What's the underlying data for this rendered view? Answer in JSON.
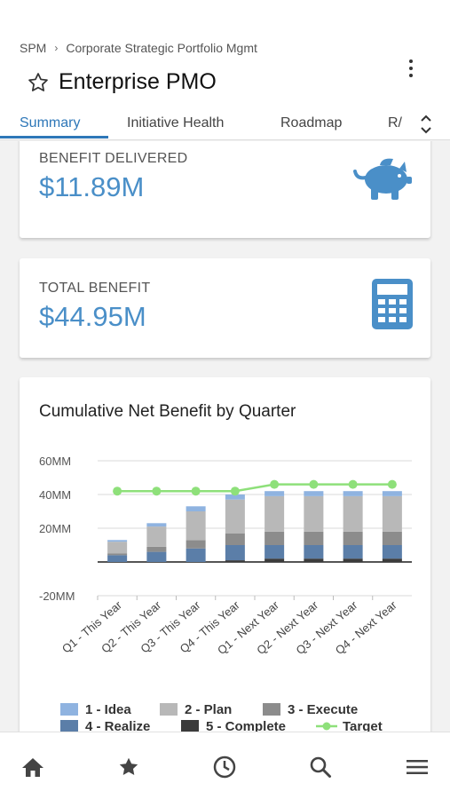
{
  "breadcrumb": {
    "root": "SPM",
    "separator": "›",
    "current": "Corporate Strategic Portfolio Mgmt"
  },
  "page": {
    "title": "Enterprise PMO"
  },
  "tabs": [
    {
      "label": "Summary",
      "active": true
    },
    {
      "label": "Initiative Health",
      "active": false
    },
    {
      "label": "Roadmap",
      "active": false
    },
    {
      "label": "R/",
      "active": false
    }
  ],
  "cards": {
    "benefit_delivered": {
      "label": "BENEFIT DELIVERED",
      "value": "$11.89M",
      "icon": "piggy-bank-icon"
    },
    "total_benefit": {
      "label": "TOTAL BENEFIT",
      "value": "$44.95M",
      "icon": "calculator-icon"
    }
  },
  "colors": {
    "accent": "#2e77b8",
    "icon": "#4a8fc8",
    "target": "#8ee07a"
  },
  "chart_data": {
    "type": "bar",
    "stacked": true,
    "title": "Cumulative Net Benefit by Quarter",
    "categories": [
      "Q1 - This Year",
      "Q2 - This Year",
      "Q3 - This Year",
      "Q4 - This Year",
      "Q1 - Next Year",
      "Q2 - Next Year",
      "Q3 - Next Year",
      "Q4 - Next Year"
    ],
    "y_tick_labels": [
      "60MM",
      "40MM",
      "20MM",
      "-20MM"
    ],
    "ylim": [
      -20,
      60
    ],
    "grid": true,
    "legend_position": "bottom",
    "series": [
      {
        "name": "5 - Complete",
        "color": "#3b3b3b",
        "values": [
          0,
          0,
          0,
          1,
          2,
          2,
          2,
          2
        ]
      },
      {
        "name": "4 - Realize",
        "color": "#5b7ea8",
        "values": [
          4,
          6,
          8,
          9,
          8,
          8,
          8,
          8
        ]
      },
      {
        "name": "3 - Execute",
        "color": "#8c8c8c",
        "values": [
          1,
          3,
          5,
          7,
          8,
          8,
          8,
          8
        ]
      },
      {
        "name": "2 - Plan",
        "color": "#b8b8b8",
        "values": [
          7,
          12,
          17,
          20,
          21,
          21,
          21,
          21
        ]
      },
      {
        "name": "1 - Idea",
        "color": "#8fb3e0",
        "values": [
          1,
          2,
          3,
          3,
          3,
          3,
          3,
          3
        ]
      }
    ],
    "target": {
      "name": "Target",
      "color": "#8ee07a",
      "values": [
        42,
        42,
        42,
        42,
        46,
        46,
        46,
        46
      ]
    },
    "legend": [
      {
        "name": "1 - Idea",
        "color": "#8fb3e0",
        "kind": "box"
      },
      {
        "name": "2 - Plan",
        "color": "#b8b8b8",
        "kind": "box"
      },
      {
        "name": "3 - Execute",
        "color": "#8c8c8c",
        "kind": "box"
      },
      {
        "name": "4 - Realize",
        "color": "#5b7ea8",
        "kind": "box"
      },
      {
        "name": "5 - Complete",
        "color": "#3b3b3b",
        "kind": "box"
      },
      {
        "name": "Target",
        "color": "#8ee07a",
        "kind": "line"
      }
    ]
  },
  "bottom_nav": [
    {
      "name": "home-icon"
    },
    {
      "name": "star-icon"
    },
    {
      "name": "clock-icon"
    },
    {
      "name": "search-icon"
    },
    {
      "name": "menu-icon"
    }
  ]
}
